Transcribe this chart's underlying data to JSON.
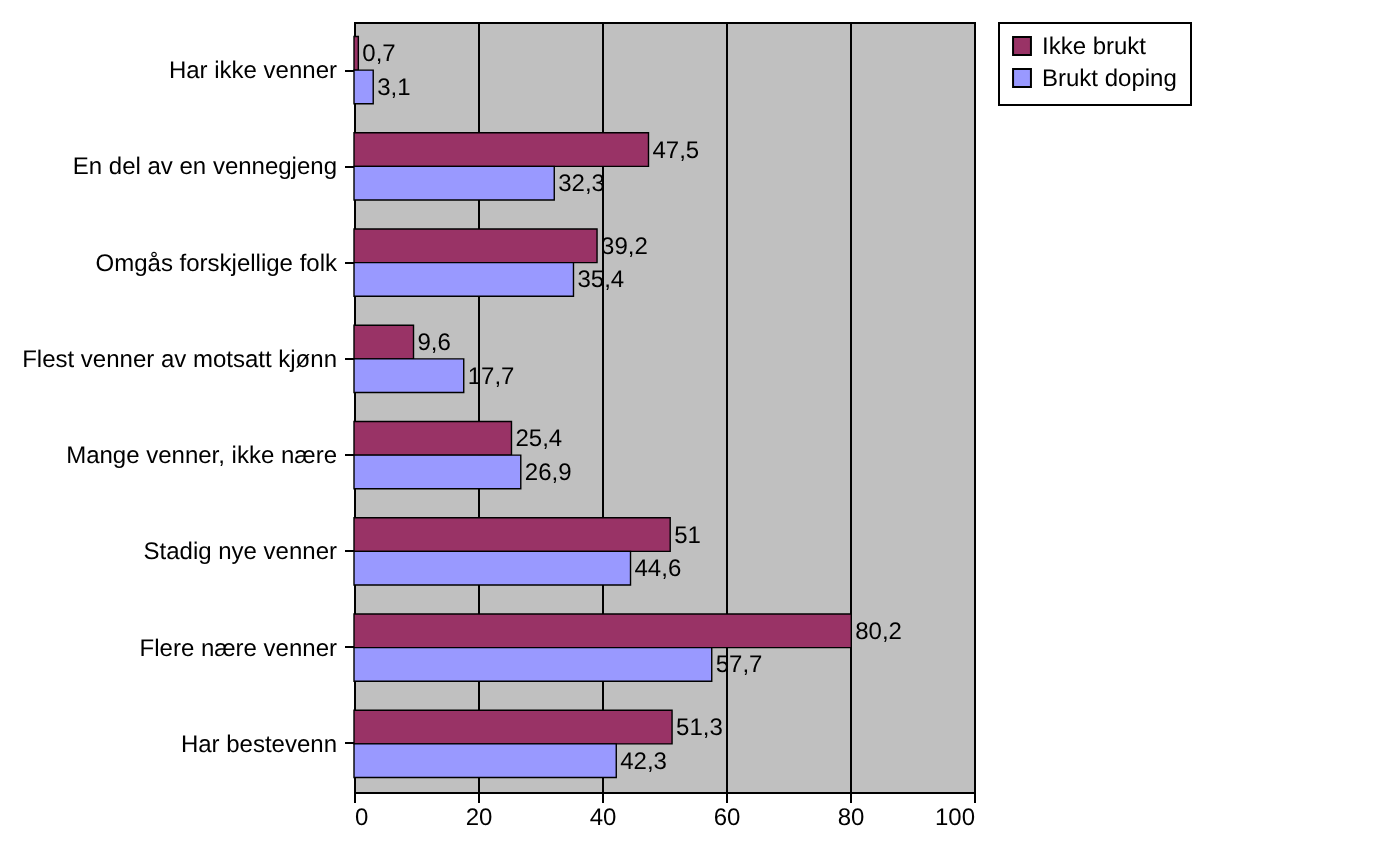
{
  "chart_data": {
    "type": "bar",
    "orientation": "horizontal",
    "categories": [
      "Har ikke venner",
      "En del av en vennegjeng",
      "Omgås forskjellige folk",
      "Flest venner av motsatt kjønn",
      "Mange venner, ikke nære",
      "Stadig nye venner",
      "Flere nære venner",
      "Har bestevenn"
    ],
    "series": [
      {
        "name": "Ikke brukt",
        "color": "#993366",
        "values": [
          0.7,
          47.5,
          39.2,
          9.6,
          25.4,
          51,
          80.2,
          51.3
        ],
        "value_labels": [
          "0,7",
          "47,5",
          "39,2",
          "9,6",
          "25,4",
          "51",
          "80,2",
          "51,3"
        ]
      },
      {
        "name": "Brukt doping",
        "color": "#9999ff",
        "values": [
          3.1,
          32.3,
          35.4,
          17.7,
          26.9,
          44.6,
          57.7,
          42.3
        ],
        "value_labels": [
          "3,1",
          "32,3",
          "35,4",
          "17,7",
          "26,9",
          "44,6",
          "57,7",
          "42,3"
        ]
      }
    ],
    "xlim": [
      0,
      100
    ],
    "xticks": [
      0,
      20,
      40,
      60,
      80,
      100
    ],
    "grid": "x",
    "legend": "right"
  }
}
